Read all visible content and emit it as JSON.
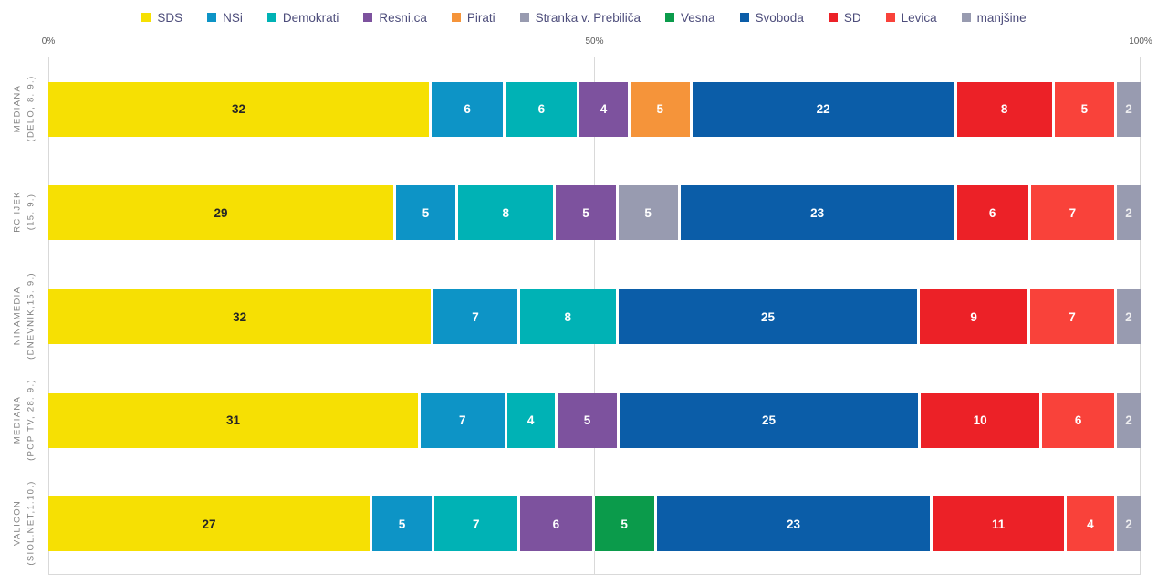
{
  "chart_data": {
    "type": "bar",
    "orientation": "horizontal",
    "stacking": "normalized-100pct",
    "title": "",
    "legend_position": "top",
    "grid": "vertical",
    "xlim": [
      0,
      100
    ],
    "x_ticks": [
      "0%",
      "50%",
      "100%"
    ],
    "categories": [
      "MEDIANA (DELO, 8. 9.)",
      "RC IJEK (15. 9.)",
      "NINAMEDIA (DNEVNIK,15. 9.)",
      "MEDIANA (POP TV, 28. 9.)",
      "VALICON (SIOL.NET,1.10.)"
    ],
    "y_labels": [
      {
        "line1": "MEDIANA",
        "line2": "(DELO, 8. 9.)"
      },
      {
        "line1": "RC IJEK",
        "line2": "(15. 9.)"
      },
      {
        "line1": "NINAMEDIA",
        "line2": "(DNEVNIK,15. 9.)"
      },
      {
        "line1": "MEDIANA",
        "line2": "(POP TV, 28. 9.)"
      },
      {
        "line1": "VALICON",
        "line2": "(SIOL.NET,1.10.)"
      }
    ],
    "series": [
      {
        "name": "SDS",
        "color": "#F6E003",
        "label_color": "#262626",
        "values": [
          32,
          29,
          32,
          31,
          27
        ]
      },
      {
        "name": "NSi",
        "color": "#0D94C6",
        "label_color": "#FFFFFF",
        "values": [
          6,
          5,
          7,
          7,
          5
        ]
      },
      {
        "name": "Demokrati",
        "color": "#00B2B5",
        "label_color": "#FFFFFF",
        "values": [
          6,
          8,
          8,
          4,
          7
        ]
      },
      {
        "name": "Resni.ca",
        "color": "#7D529E",
        "label_color": "#FFFFFF",
        "values": [
          4,
          5,
          0,
          5,
          6
        ]
      },
      {
        "name": "Pirati",
        "color": "#F5943A",
        "label_color": "#FFFFFF",
        "values": [
          5,
          0,
          0,
          0,
          0
        ]
      },
      {
        "name": "Stranka v. Prebiliča",
        "color": "#989BB0",
        "label_color": "#FFFFFF",
        "values": [
          0,
          5,
          0,
          0,
          0
        ]
      },
      {
        "name": "Vesna",
        "color": "#0B9B4B",
        "label_color": "#FFFFFF",
        "values": [
          0,
          0,
          0,
          0,
          5
        ]
      },
      {
        "name": "Svoboda",
        "color": "#0B5DA8",
        "label_color": "#FFFFFF",
        "values": [
          22,
          23,
          25,
          25,
          23
        ]
      },
      {
        "name": "SD",
        "color": "#EC2127",
        "label_color": "#FFFFFF",
        "values": [
          8,
          6,
          9,
          10,
          11
        ]
      },
      {
        "name": "Levica",
        "color": "#F9423A",
        "label_color": "#FFFFFF",
        "values": [
          5,
          7,
          7,
          6,
          4
        ]
      },
      {
        "name": "manjšine",
        "color": "#989BB0",
        "label_color": "#EDEDEF",
        "values": [
          2,
          2,
          2,
          2,
          2
        ]
      }
    ]
  },
  "colors": {
    "gridline": "#D9D9D9",
    "tick_text": "#595959",
    "row_label_text": "#7F7F7F",
    "legend_text": "#4D4D7B",
    "background": "#FFFFFF"
  }
}
